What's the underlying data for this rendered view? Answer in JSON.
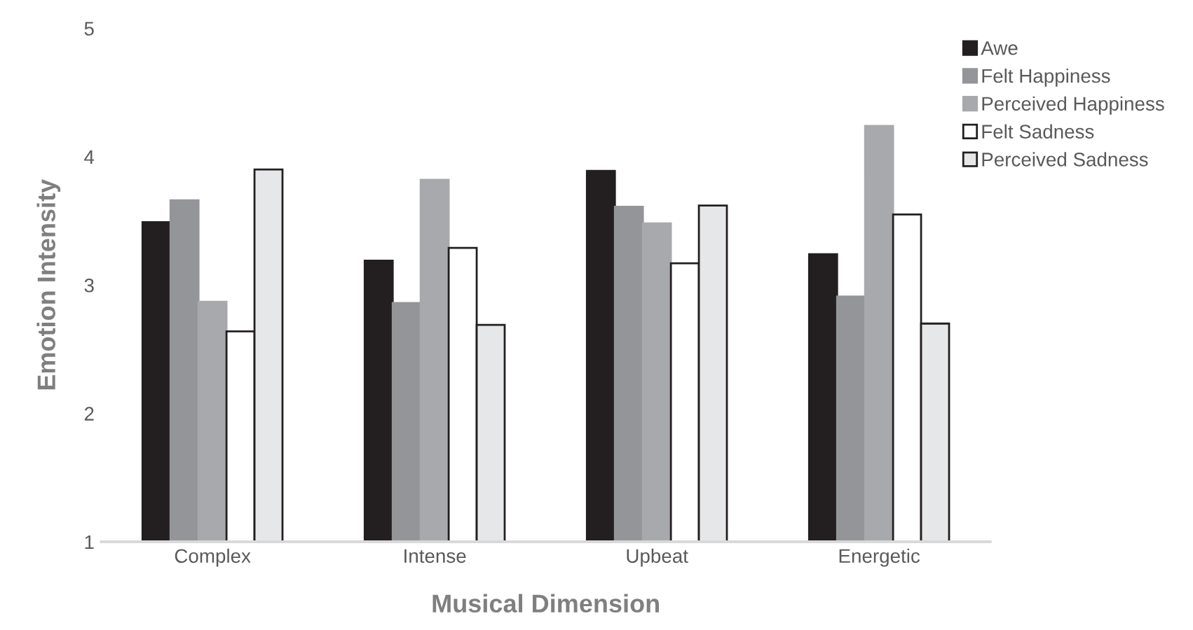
{
  "chart_data": {
    "type": "bar",
    "categories": [
      "Complex",
      "Intense",
      "Upbeat",
      "Energetic"
    ],
    "xlabel": "Musical Dimension",
    "ylabel": "Emotion Intensity",
    "ylim": [
      1,
      5
    ],
    "yticks": [
      1,
      2,
      3,
      4,
      5
    ],
    "grid": false,
    "legend": "top right",
    "series": [
      {
        "name": "Awe",
        "color": "#231f20",
        "values": [
          3.49,
          3.19,
          3.89,
          3.24
        ]
      },
      {
        "name": "Felt Happiness",
        "color": "#939598",
        "values": [
          3.66,
          2.86,
          3.61,
          2.91
        ]
      },
      {
        "name": "Perceived Happiness",
        "color": "#a7a9ac",
        "values": [
          2.87,
          3.82,
          3.48,
          4.24
        ]
      },
      {
        "name": "Felt Sadness",
        "color": "#ffffff",
        "values": [
          2.64,
          3.29,
          3.17,
          3.55
        ]
      },
      {
        "name": "Perceived Sadness",
        "color": "#e6e7e8",
        "values": [
          3.9,
          2.69,
          3.62,
          2.7
        ]
      }
    ]
  }
}
